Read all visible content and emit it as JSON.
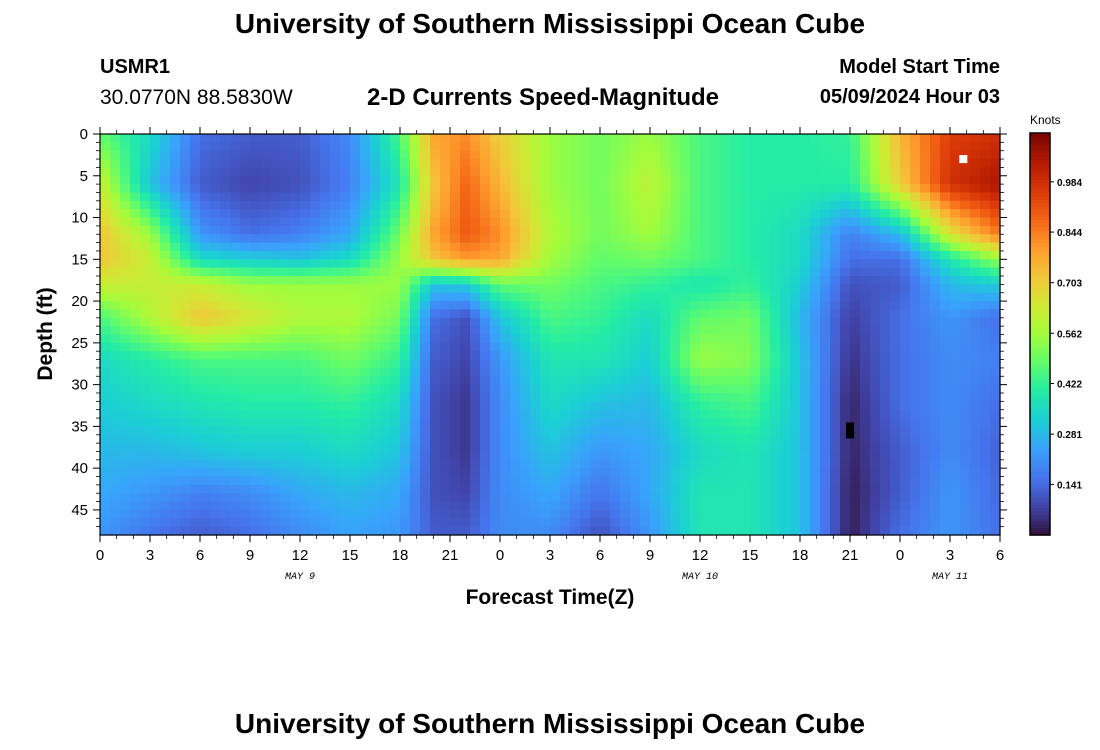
{
  "page": {
    "title": "University of Southern Mississippi Ocean Cube",
    "station_id": "USMR1",
    "coords": "30.0770N  88.5830W",
    "subtitle": "2-D Currents Speed-Magnitude",
    "model_start_label": "Model Start Time",
    "model_start_value": "05/09/2024 Hour 03",
    "footer_title": "University of Southern Mississippi Ocean Cube"
  },
  "chart_data": {
    "type": "heatmap",
    "xlabel": "Forecast Time(Z)",
    "ylabel": "Depth (ft)",
    "colorbar_label": "Knots",
    "x_range_hours": [
      0,
      54
    ],
    "y_range_ft": [
      0,
      48
    ],
    "x_tick_labels": [
      "0",
      "3",
      "6",
      "9",
      "12",
      "15",
      "18",
      "21",
      "0",
      "3",
      "6",
      "9",
      "12",
      "15",
      "18",
      "21",
      "0",
      "3",
      "6"
    ],
    "y_tick_labels": [
      "0",
      "5",
      "10",
      "15",
      "20",
      "25",
      "30",
      "35",
      "40",
      "45"
    ],
    "date_labels": [
      {
        "text": "MAY 9",
        "hour": 12
      },
      {
        "text": "MAY 10",
        "hour": 36
      },
      {
        "text": "MAY 11",
        "hour": 51
      }
    ],
    "colorbar_ticks": [
      "0.141",
      "0.281",
      "0.422",
      "0.562",
      "0.703",
      "0.844",
      "0.984"
    ],
    "value_range_knots": [
      0,
      1.12
    ],
    "colormap": [
      "#30123b",
      "#4145ab",
      "#4675ed",
      "#39a2fc",
      "#1bcfd4",
      "#24eca6",
      "#61fc6c",
      "#a4fc3b",
      "#d1e834",
      "#f3c63a",
      "#fe9b2d",
      "#f36315",
      "#d93807",
      "#b11901",
      "#7a0403"
    ],
    "depths_ft": [
      0,
      6,
      12,
      15,
      18,
      22,
      27,
      32,
      38,
      43,
      48
    ],
    "hours": [
      0,
      3,
      6,
      9,
      12,
      15,
      18,
      20,
      22,
      24,
      27,
      30,
      33,
      36,
      39,
      42,
      45,
      48,
      51,
      54
    ],
    "speed_knots": [
      [
        0.48,
        0.35,
        0.15,
        0.12,
        0.12,
        0.2,
        0.45,
        0.78,
        0.82,
        0.7,
        0.55,
        0.5,
        0.55,
        0.45,
        0.4,
        0.4,
        0.42,
        0.75,
        0.95,
        0.98
      ],
      [
        0.62,
        0.3,
        0.12,
        0.08,
        0.1,
        0.18,
        0.38,
        0.72,
        0.88,
        0.75,
        0.55,
        0.5,
        0.6,
        0.45,
        0.4,
        0.4,
        0.4,
        0.7,
        0.98,
        1.05
      ],
      [
        0.72,
        0.55,
        0.22,
        0.15,
        0.18,
        0.25,
        0.5,
        0.78,
        0.9,
        0.82,
        0.58,
        0.5,
        0.56,
        0.45,
        0.4,
        0.35,
        0.18,
        0.28,
        0.65,
        0.85
      ],
      [
        0.72,
        0.62,
        0.35,
        0.32,
        0.3,
        0.35,
        0.55,
        0.72,
        0.8,
        0.78,
        0.56,
        0.48,
        0.5,
        0.45,
        0.4,
        0.35,
        0.15,
        0.15,
        0.38,
        0.55
      ],
      [
        0.62,
        0.62,
        0.62,
        0.55,
        0.55,
        0.55,
        0.55,
        0.3,
        0.32,
        0.48,
        0.5,
        0.45,
        0.42,
        0.38,
        0.42,
        0.32,
        0.1,
        0.12,
        0.28,
        0.32
      ],
      [
        0.45,
        0.58,
        0.72,
        0.65,
        0.58,
        0.58,
        0.5,
        0.15,
        0.1,
        0.3,
        0.45,
        0.42,
        0.35,
        0.48,
        0.5,
        0.28,
        0.07,
        0.15,
        0.22,
        0.15
      ],
      [
        0.35,
        0.4,
        0.45,
        0.45,
        0.45,
        0.5,
        0.42,
        0.12,
        0.08,
        0.22,
        0.38,
        0.38,
        0.32,
        0.55,
        0.52,
        0.3,
        0.05,
        0.15,
        0.2,
        0.18
      ],
      [
        0.32,
        0.35,
        0.38,
        0.4,
        0.4,
        0.42,
        0.35,
        0.1,
        0.06,
        0.2,
        0.35,
        0.3,
        0.28,
        0.42,
        0.45,
        0.3,
        0.03,
        0.15,
        0.2,
        0.15
      ],
      [
        0.28,
        0.28,
        0.3,
        0.32,
        0.32,
        0.35,
        0.3,
        0.1,
        0.06,
        0.2,
        0.3,
        0.22,
        0.25,
        0.35,
        0.38,
        0.3,
        0.03,
        0.12,
        0.2,
        0.13
      ],
      [
        0.25,
        0.22,
        0.18,
        0.2,
        0.25,
        0.28,
        0.25,
        0.1,
        0.08,
        0.2,
        0.25,
        0.16,
        0.25,
        0.38,
        0.38,
        0.3,
        0.02,
        0.12,
        0.22,
        0.14
      ],
      [
        0.22,
        0.16,
        0.12,
        0.15,
        0.2,
        0.24,
        0.22,
        0.12,
        0.12,
        0.2,
        0.2,
        0.1,
        0.22,
        0.38,
        0.38,
        0.3,
        0.02,
        0.15,
        0.22,
        0.15
      ]
    ],
    "markers": [
      {
        "hour": 51.8,
        "depth_ft": 3.0,
        "color": "#ffffff"
      },
      {
        "hour": 45.0,
        "depth_ft": 35.0,
        "color": "#000000"
      }
    ]
  }
}
